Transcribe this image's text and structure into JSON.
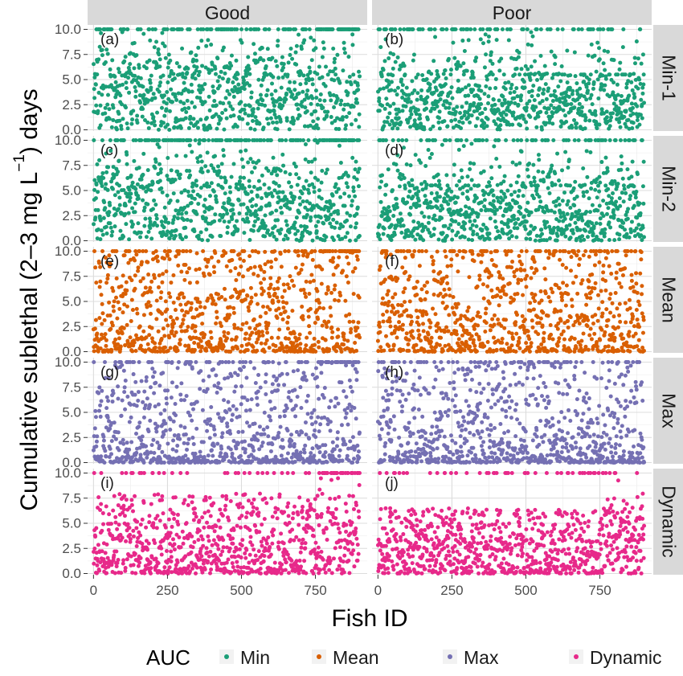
{
  "chart_data": {
    "type": "scatter",
    "xlabel": "Fish ID",
    "ylabel_parts": {
      "before": "Cumulative sublethal (2–3  mg  L",
      "superscript": "−1",
      "after": ") days"
    },
    "xlim": [
      -20,
      925
    ],
    "ylim": [
      0,
      10
    ],
    "x_ticks": [
      0,
      250,
      500,
      750
    ],
    "y_ticks": [
      "0.0",
      "2.5",
      "5.0",
      "7.5",
      "10.0"
    ],
    "columns": [
      "Good",
      "Poor"
    ],
    "rows": [
      "Min-1",
      "Min-2",
      "Mean",
      "Max",
      "Dynamic"
    ],
    "panel_letters": [
      "(a)",
      "(b)",
      "(c)",
      "(d)",
      "(e)",
      "(f)",
      "(g)",
      "(h)",
      "(i)",
      "(j)"
    ],
    "n_fish": 900,
    "legend": {
      "title": "AUC",
      "position": "bottom",
      "entries": [
        {
          "label": "Min",
          "color": "#1b9e77"
        },
        {
          "label": "Mean",
          "color": "#d95f02"
        },
        {
          "label": "Max",
          "color": "#7570b3"
        },
        {
          "label": "Dynamic",
          "color": "#e7298a"
        }
      ]
    },
    "row_series": [
      "Min",
      "Min",
      "Mean",
      "Max",
      "Dynamic"
    ],
    "grid": true,
    "panel_background": "#ffffff",
    "strip_background": "#d9d9d9",
    "grid_color": "#ebebeb"
  }
}
